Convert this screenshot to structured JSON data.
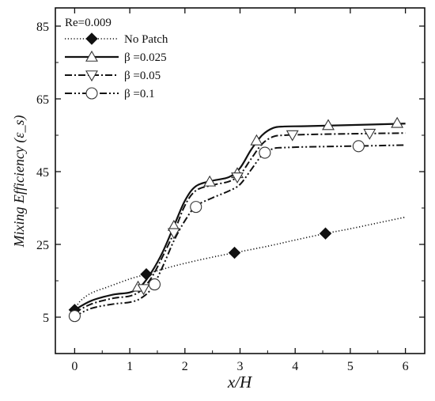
{
  "chart_data": {
    "type": "line",
    "title": "",
    "annotation": "Re=0.009",
    "xlabel": "x/H",
    "ylabel": "Mixing Efficiency (ε_s)",
    "xlim": [
      -0.35,
      6.35
    ],
    "ylim": [
      -5,
      90
    ],
    "x_ticks": [
      0,
      1,
      2,
      3,
      4,
      5,
      6
    ],
    "y_ticks": [
      5,
      25,
      45,
      65,
      85
    ],
    "grid": false,
    "legend_position": "top-left",
    "series": [
      {
        "name": "No Patch",
        "line_style": "dotted",
        "marker": "filled-diamond",
        "x": [
          0,
          0.1,
          0.3,
          0.6,
          1.0,
          1.3,
          1.6,
          2.0,
          2.5,
          2.9,
          3.5,
          4.0,
          4.55,
          5.0,
          5.5,
          6.0
        ],
        "y": [
          7,
          9.4,
          11.6,
          13.3,
          15.5,
          16.8,
          18.2,
          19.8,
          21.5,
          22.7,
          24.5,
          26.2,
          28.0,
          29.3,
          30.9,
          32.5
        ],
        "marker_x": [
          0,
          1.3,
          2.9,
          4.55
        ],
        "marker_y": [
          7,
          16.8,
          22.7,
          28.0
        ]
      },
      {
        "name": "β =0.025",
        "line_style": "solid",
        "marker": "open-triangle-up",
        "x": [
          0,
          0.3,
          0.7,
          1.0,
          1.2,
          1.4,
          1.6,
          1.8,
          2.0,
          2.2,
          2.5,
          2.8,
          3.0,
          3.2,
          3.4,
          3.6,
          3.8,
          4.2,
          5.0,
          6.0
        ],
        "y": [
          7,
          9.5,
          11.2,
          11.8,
          13.5,
          17.5,
          23,
          30,
          37,
          41,
          42.5,
          43.5,
          46,
          51,
          55,
          57,
          57.4,
          57.5,
          57.8,
          58.2
        ],
        "marker_x": [
          1.15,
          1.8,
          2.45,
          2.95,
          3.3,
          4.6,
          5.85
        ],
        "marker_y": [
          13.3,
          30,
          42.2,
          44.5,
          53.5,
          57.7,
          58.3
        ]
      },
      {
        "name": "β =0.05",
        "line_style": "dashdot",
        "marker": "open-triangle-down",
        "x": [
          0,
          0.3,
          0.7,
          1.0,
          1.2,
          1.4,
          1.6,
          1.8,
          2.0,
          2.2,
          2.5,
          2.8,
          3.0,
          3.2,
          3.4,
          3.6,
          3.8,
          4.2,
          5.0,
          6.0
        ],
        "y": [
          6.2,
          8.6,
          10.2,
          10.8,
          12.3,
          16,
          21.8,
          28.2,
          35.7,
          39.8,
          41.3,
          42.3,
          44.2,
          48.5,
          52.6,
          54.6,
          55.0,
          55.2,
          55.4,
          55.6
        ],
        "marker_x": [
          1.25,
          1.8,
          2.95,
          3.95,
          5.35
        ],
        "marker_y": [
          12.8,
          28.2,
          43.5,
          55.1,
          55.5
        ]
      },
      {
        "name": "β =0.1",
        "line_style": "dashdotdot",
        "marker": "open-circle",
        "x": [
          0,
          0.3,
          0.7,
          1.0,
          1.2,
          1.4,
          1.6,
          1.8,
          2.0,
          2.2,
          2.5,
          2.8,
          3.0,
          3.2,
          3.4,
          3.6,
          3.8,
          4.2,
          5.0,
          6.0
        ],
        "y": [
          5.2,
          7.4,
          8.6,
          9.1,
          10.2,
          13,
          19,
          26,
          31.5,
          35.5,
          37.8,
          39.7,
          41.5,
          45.5,
          49.5,
          51.3,
          51.6,
          51.8,
          52.0,
          52.3
        ],
        "marker_x": [
          0,
          1.45,
          2.2,
          3.45,
          5.15
        ],
        "marker_y": [
          5.3,
          14,
          35.3,
          50.2,
          52.0
        ]
      }
    ]
  }
}
